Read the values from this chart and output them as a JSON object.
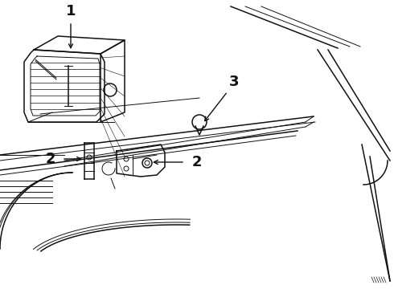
{
  "background_color": "#ffffff",
  "line_color": "#111111",
  "fig_width": 4.9,
  "fig_height": 3.6,
  "dpi": 100
}
